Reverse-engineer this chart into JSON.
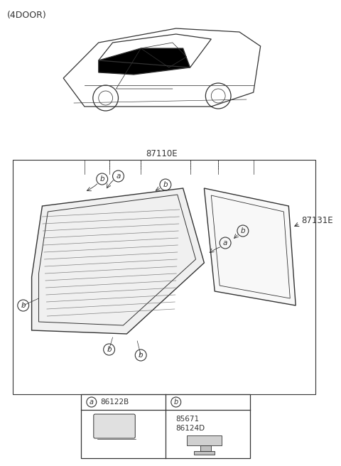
{
  "title": "(4DOOR)",
  "bg_color": "#ffffff",
  "part_label_87110E": "87110E",
  "part_label_87131E": "87131E",
  "part_label_a": "86122B",
  "part_label_b1": "85671",
  "part_label_b2": "86124D",
  "callout_a": "a",
  "callout_b": "b",
  "line_color": "#333333",
  "fill_color": "#000000",
  "glass_stripe_color": "#555555",
  "border_color": "#333333"
}
